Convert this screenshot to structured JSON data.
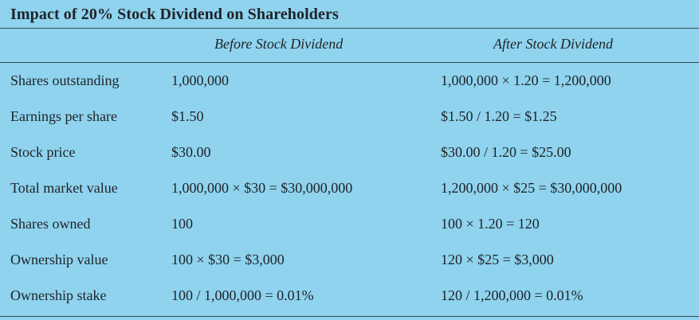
{
  "title": "Impact of 20% Stock Dividend on Shareholders",
  "columns": {
    "before": "Before Stock Dividend",
    "after": "After Stock Dividend"
  },
  "rows": [
    {
      "label": "Shares outstanding",
      "before": "1,000,000",
      "after": "1,000,000 × 1.20 = 1,200,000"
    },
    {
      "label": "Earnings per share",
      "before": "$1.50",
      "after": "$1.50 / 1.20 = $1.25"
    },
    {
      "label": "Stock price",
      "before": "$30.00",
      "after": "$30.00 / 1.20 = $25.00"
    },
    {
      "label": "Total market value",
      "before": "1,000,000 × $30 = $30,000,000",
      "after": "1,200,000 × $25 = $30,000,000"
    },
    {
      "label": "Shares owned",
      "before": "100",
      "after": "100 × 1.20 = 120"
    },
    {
      "label": "Ownership value",
      "before": "100 × $30 = $3,000",
      "after": "120 × $25 = $3,000"
    },
    {
      "label": "Ownership stake",
      "before": "100 / 1,000,000 = 0.01%",
      "after": "120 / 1,200,000 = 0.01%"
    }
  ],
  "colors": {
    "background": "#8fd3ee",
    "text": "#1f2328",
    "rules": "#3b4a55"
  }
}
